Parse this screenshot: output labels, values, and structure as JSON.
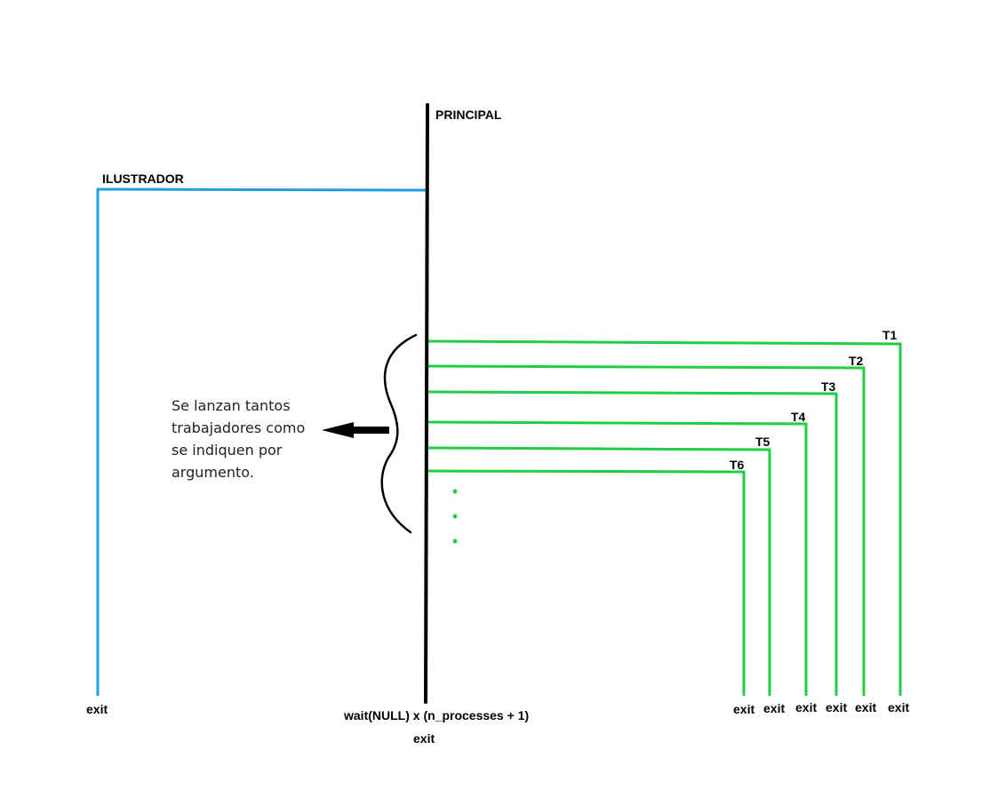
{
  "labels": {
    "principal": "PRINCIPAL",
    "ilustrador": "ILUSTRADOR",
    "main_wait": "wait(NULL) x (n_processes + 1)",
    "main_exit": "exit",
    "ilustrador_exit": "exit"
  },
  "workers": [
    {
      "name": "T1",
      "exit": "exit"
    },
    {
      "name": "T2",
      "exit": "exit"
    },
    {
      "name": "T3",
      "exit": "exit"
    },
    {
      "name": "T4",
      "exit": "exit"
    },
    {
      "name": "T5",
      "exit": "exit"
    },
    {
      "name": "T6",
      "exit": "exit"
    }
  ],
  "note_lines": [
    "Se lanzan tantos",
    "trabajadores como",
    "se indiquen por",
    "argumento."
  ],
  "colors": {
    "principal_line": "#000000",
    "ilustrador_line": "#1ba1e2",
    "worker_line": "#22cc44"
  }
}
